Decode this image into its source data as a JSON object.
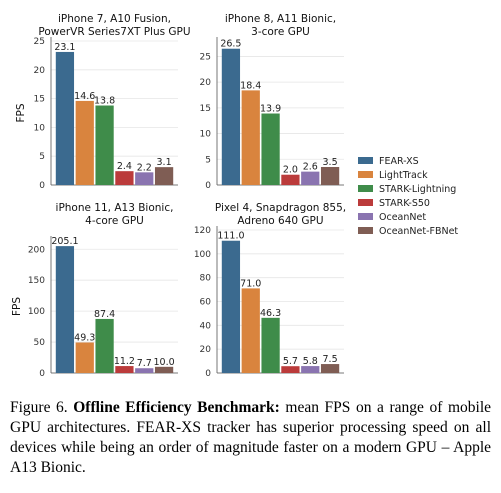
{
  "chart_data": [
    {
      "type": "bar",
      "title": "iPhone 7, A10 Fusion,\nPowerVR Series7XT Plus GPU",
      "ylabel": "FPS",
      "ylim": [
        0,
        25
      ],
      "yticks": [
        0,
        5,
        10,
        15,
        20,
        25
      ],
      "series": [
        {
          "name": "FEAR-XS",
          "value": 23.1
        },
        {
          "name": "LightTrack",
          "value": 14.6
        },
        {
          "name": "STARK-Lightning",
          "value": 13.8
        },
        {
          "name": "STARK-S50",
          "value": 2.4
        },
        {
          "name": "OceanNet",
          "value": 2.2
        },
        {
          "name": "OceanNet-FBNet",
          "value": 3.1
        }
      ],
      "data_labels": [
        "23.1",
        "14.6",
        "13.8",
        "2.4",
        "2.2",
        "3.1"
      ]
    },
    {
      "type": "bar",
      "title": "iPhone 8, A11 Bionic,\n3-core GPU",
      "ylabel": "",
      "ylim": [
        0,
        28
      ],
      "yticks": [
        0,
        5,
        10,
        15,
        20,
        25
      ],
      "series": [
        {
          "name": "FEAR-XS",
          "value": 26.5
        },
        {
          "name": "LightTrack",
          "value": 18.4
        },
        {
          "name": "STARK-Lightning",
          "value": 13.9
        },
        {
          "name": "STARK-S50",
          "value": 2.0
        },
        {
          "name": "OceanNet",
          "value": 2.6
        },
        {
          "name": "OceanNet-FBNet",
          "value": 3.5
        }
      ],
      "data_labels": [
        "26.5",
        "18.4",
        "13.9",
        "2.0",
        "2.6",
        "3.5"
      ]
    },
    {
      "type": "bar",
      "title": "iPhone 11, A13 Bionic,\n4-core GPU",
      "ylabel": "FPS",
      "ylim": [
        0,
        215
      ],
      "yticks": [
        0,
        50,
        100,
        150,
        200
      ],
      "series": [
        {
          "name": "FEAR-XS",
          "value": 205.1
        },
        {
          "name": "LightTrack",
          "value": 49.3
        },
        {
          "name": "STARK-Lightning",
          "value": 87.4
        },
        {
          "name": "STARK-S50",
          "value": 11.2
        },
        {
          "name": "OceanNet",
          "value": 7.7
        },
        {
          "name": "OceanNet-FBNet",
          "value": 10.0
        }
      ],
      "data_labels": [
        "205.1",
        "49.3",
        "87.4",
        "11.2",
        "7.7",
        "10.0"
      ]
    },
    {
      "type": "bar",
      "title": "Pixel 4, Snapdragon 855,\nAdreno 640 GPU",
      "ylabel": "",
      "ylim": [
        0,
        120
      ],
      "yticks": [
        0,
        20,
        40,
        60,
        80,
        100,
        120
      ],
      "series": [
        {
          "name": "FEAR-XS",
          "value": 111.0
        },
        {
          "name": "LightTrack",
          "value": 71.0
        },
        {
          "name": "STARK-Lightning",
          "value": 46.3
        },
        {
          "name": "STARK-S50",
          "value": 5.7
        },
        {
          "name": "OceanNet",
          "value": 5.8
        },
        {
          "name": "OceanNet-FBNet",
          "value": 7.5
        }
      ],
      "data_labels": [
        "111.0",
        "71.0",
        "46.3",
        "5.7",
        "5.8",
        "7.5"
      ]
    }
  ],
  "legend": {
    "placement": "right",
    "entries": [
      "FEAR-XS",
      "LightTrack",
      "STARK-Lightning",
      "STARK-S50",
      "OceanNet",
      "OceanNet-FBNet"
    ],
    "colors": [
      "#3b6a8f",
      "#d9843e",
      "#3f8c4a",
      "#bb3b3b",
      "#8a74b0",
      "#7f5d54"
    ]
  },
  "caption": {
    "prefix": "Figure 6.",
    "bold": "Offline Efficiency Benchmark:",
    "text": "mean FPS on a range of mobile GPU architectures. FEAR-XS tracker has superior processing speed on all devices while being an order of magnitude faster on a modern GPU – Apple A13 Bionic."
  }
}
